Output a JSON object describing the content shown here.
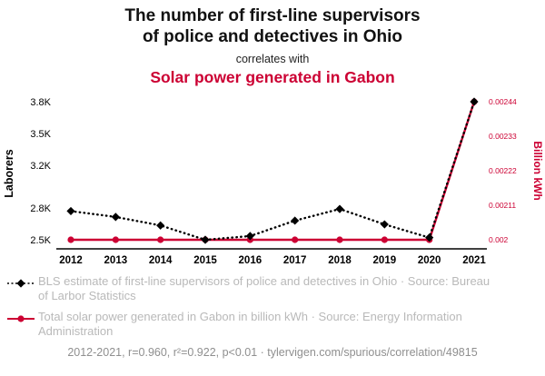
{
  "header": {
    "title_line1": "The number of first-line supervisors",
    "title_line2": "of police and detectives in Ohio",
    "connector": "correlates with",
    "subtitle": "Solar power generated in Gabon"
  },
  "colors": {
    "accent_red": "#cc0033",
    "series_black": "#000000",
    "legend_gray": "#b9b9b9",
    "footer_gray": "#8f8f8f"
  },
  "chart_data": {
    "type": "line",
    "x": [
      2012,
      2013,
      2014,
      2015,
      2016,
      2017,
      2018,
      2019,
      2020,
      2021
    ],
    "grid": false,
    "legend_position": "bottom",
    "left_axis": {
      "label": "Laborers",
      "range": [
        2500,
        3800
      ],
      "ticks": [
        {
          "value": 2500,
          "label": "2.5K"
        },
        {
          "value": 2800,
          "label": "2.8K"
        },
        {
          "value": 3200,
          "label": "3.2K"
        },
        {
          "value": 3500,
          "label": "3.5K"
        },
        {
          "value": 3800,
          "label": "3.8K"
        }
      ]
    },
    "right_axis": {
      "label": "Billion kWh",
      "range": [
        0.002,
        0.00244
      ],
      "ticks": [
        {
          "value": 0.002,
          "label": "0.002"
        },
        {
          "value": 0.00211,
          "label": "0.00211"
        },
        {
          "value": 0.00222,
          "label": "0.00222"
        },
        {
          "value": 0.00233,
          "label": "0.00233"
        },
        {
          "value": 0.00244,
          "label": "0.00244"
        }
      ]
    },
    "series": [
      {
        "name": "Total solar power generated in Gabon in billion kWh",
        "axis": "right",
        "color": "#cc0033",
        "marker": "circle",
        "line": "solid",
        "values": [
          0.002,
          0.002,
          0.002,
          0.002,
          0.002,
          0.002,
          0.002,
          0.002,
          0.002,
          0.00244
        ]
      },
      {
        "name": "BLS estimate of first-line supervisors of police and detectives in Ohio",
        "axis": "left",
        "color": "#000000",
        "marker": "diamond",
        "line": "dotted",
        "values": [
          2770,
          2715,
          2635,
          2500,
          2535,
          2680,
          2790,
          2645,
          2520,
          3800
        ]
      }
    ]
  },
  "legend": {
    "items": [
      {
        "marker": "diamond",
        "text": "BLS estimate of first-line supervisors of police and detectives in Ohio · Source: Bureau of Larbor Statistics"
      },
      {
        "marker": "circle",
        "text": "Total solar power generated in Gabon in billion kWh · Source: Energy Information Administration"
      }
    ]
  },
  "footer": {
    "text": "2012-2021, r=0.960, r²=0.922, p<0.01 · tylervigen.com/spurious/correlation/49815"
  }
}
